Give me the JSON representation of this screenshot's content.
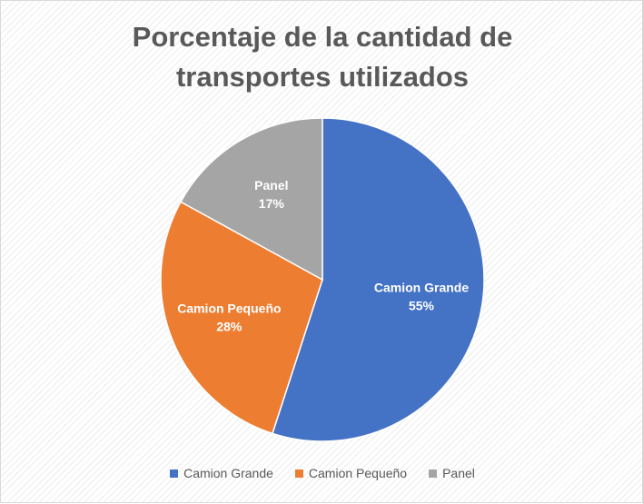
{
  "chart_data": {
    "type": "pie",
    "title": "Porcentaje de la cantidad de transportes utilizados",
    "title_lines": [
      "Porcentaje de la cantidad de",
      "transportes utilizados"
    ],
    "categories": [
      "Camion Grande",
      "Camion Pequeño",
      "Panel"
    ],
    "values": [
      55,
      28,
      17
    ],
    "value_labels": [
      "55%",
      "28%",
      "17%"
    ],
    "colors": [
      "#4472C4",
      "#ED7D31",
      "#A5A5A5"
    ],
    "legend_position": "bottom"
  }
}
